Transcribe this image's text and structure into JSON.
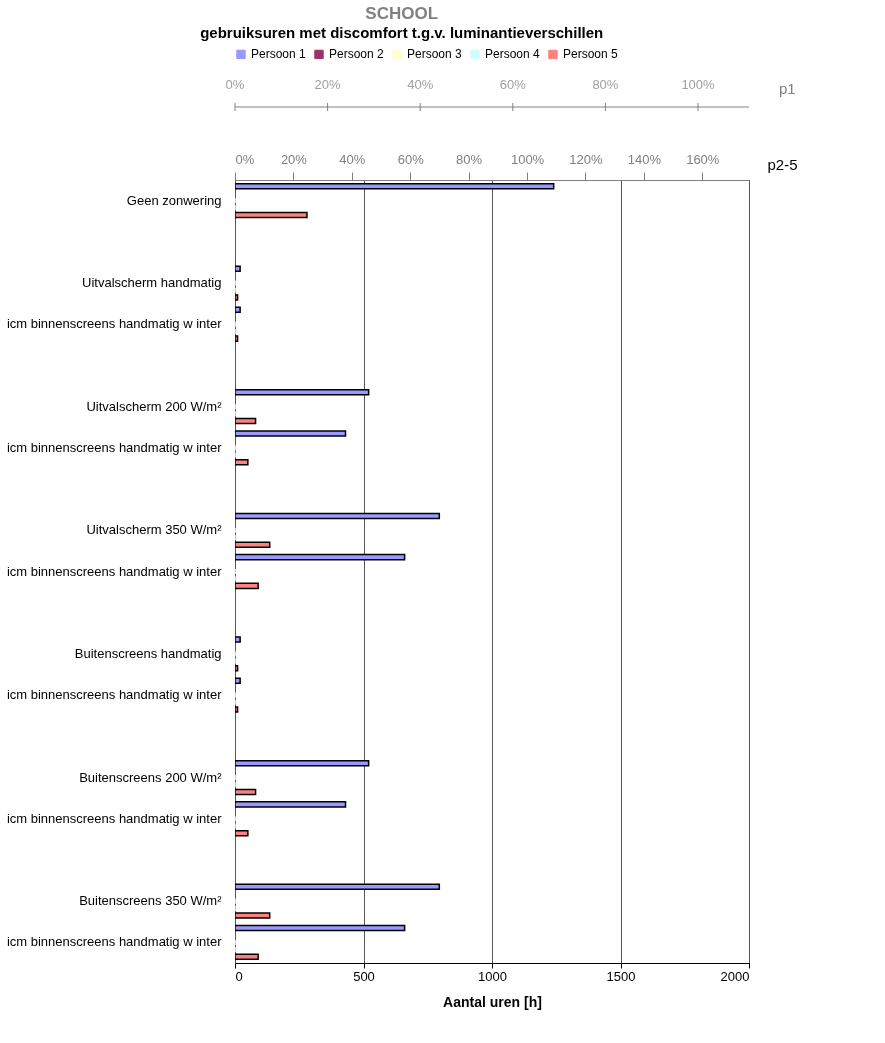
{
  "chart_data": {
    "type": "bar",
    "orientation": "horizontal",
    "title": "SCHOOL",
    "subtitle": "gebruiksuren met discomfort t.g.v. luminantieverschillen",
    "xlabel": "Aantal uren [h]",
    "x2label": "p2-5",
    "annotations": [
      "0%",
      "20%",
      "40%",
      "60%",
      "80%",
      "100%",
      "p1"
    ],
    "categories": [
      "Geen zonwering",
      null,
      "Uitvalscherm handmatig",
      "icm binnenscreens handmatig w inter",
      null,
      "Uitvalscherm 200 W/m²",
      "icm binnenscreens handmatig w inter",
      null,
      "Uitvalscherm 350 W/m²",
      "icm binnenscreens handmatig w inter",
      null,
      "Buitenscreens handmatig",
      "icm binnenscreens handmatig w inter",
      null,
      "Buitenscreens 200 W/m²",
      "icm binnenscreens handmatig w inter",
      null,
      "Buitenscreens 350 W/m²",
      "icm binnenscreens handmatig w inter"
    ],
    "series": [
      {
        "name": "Persoon 1",
        "color": "#9999ff",
        "values": [
          1240,
          null,
          20,
          20,
          null,
          520,
          430,
          null,
          795,
          660,
          null,
          20,
          20,
          null,
          520,
          430,
          null,
          795,
          660
        ]
      },
      {
        "name": "Persoon 2",
        "color": "#993366",
        "values": [
          0,
          null,
          0,
          0,
          null,
          0,
          0,
          null,
          0,
          0,
          null,
          0,
          0,
          null,
          0,
          0,
          null,
          0,
          0
        ]
      },
      {
        "name": "Persoon 3",
        "color": "#ffffcc",
        "values": [
          0,
          null,
          0,
          0,
          null,
          0,
          0,
          null,
          0,
          0,
          null,
          0,
          0,
          null,
          0,
          0,
          null,
          0,
          0
        ]
      },
      {
        "name": "Persoon 4",
        "color": "#ccffff",
        "values": [
          0,
          null,
          0,
          0,
          null,
          0,
          0,
          null,
          0,
          0,
          null,
          0,
          0,
          null,
          0,
          0,
          null,
          0,
          0
        ]
      },
      {
        "name": "Persoon 5",
        "color": "#ff8080",
        "values": [
          280,
          null,
          10,
          10,
          null,
          80,
          50,
          null,
          135,
          90,
          null,
          10,
          10,
          null,
          80,
          50,
          null,
          135,
          90
        ]
      }
    ],
    "xlim": [
      0,
      2000
    ],
    "xticks": [
      0,
      500,
      1000,
      1500,
      2000
    ],
    "x2lim": [
      0,
      176
    ],
    "x2ticks": [
      {
        "value": 0,
        "label": "0%"
      },
      {
        "value": 20,
        "label": "20%"
      },
      {
        "value": 40,
        "label": "40%"
      },
      {
        "value": 60,
        "label": "60%"
      },
      {
        "value": 80,
        "label": "80%"
      },
      {
        "value": 100,
        "label": "100%"
      },
      {
        "value": 120,
        "label": "120%"
      },
      {
        "value": 140,
        "label": "140%"
      },
      {
        "value": 160,
        "label": "160%"
      }
    ],
    "grid": "x",
    "legend": "top"
  }
}
